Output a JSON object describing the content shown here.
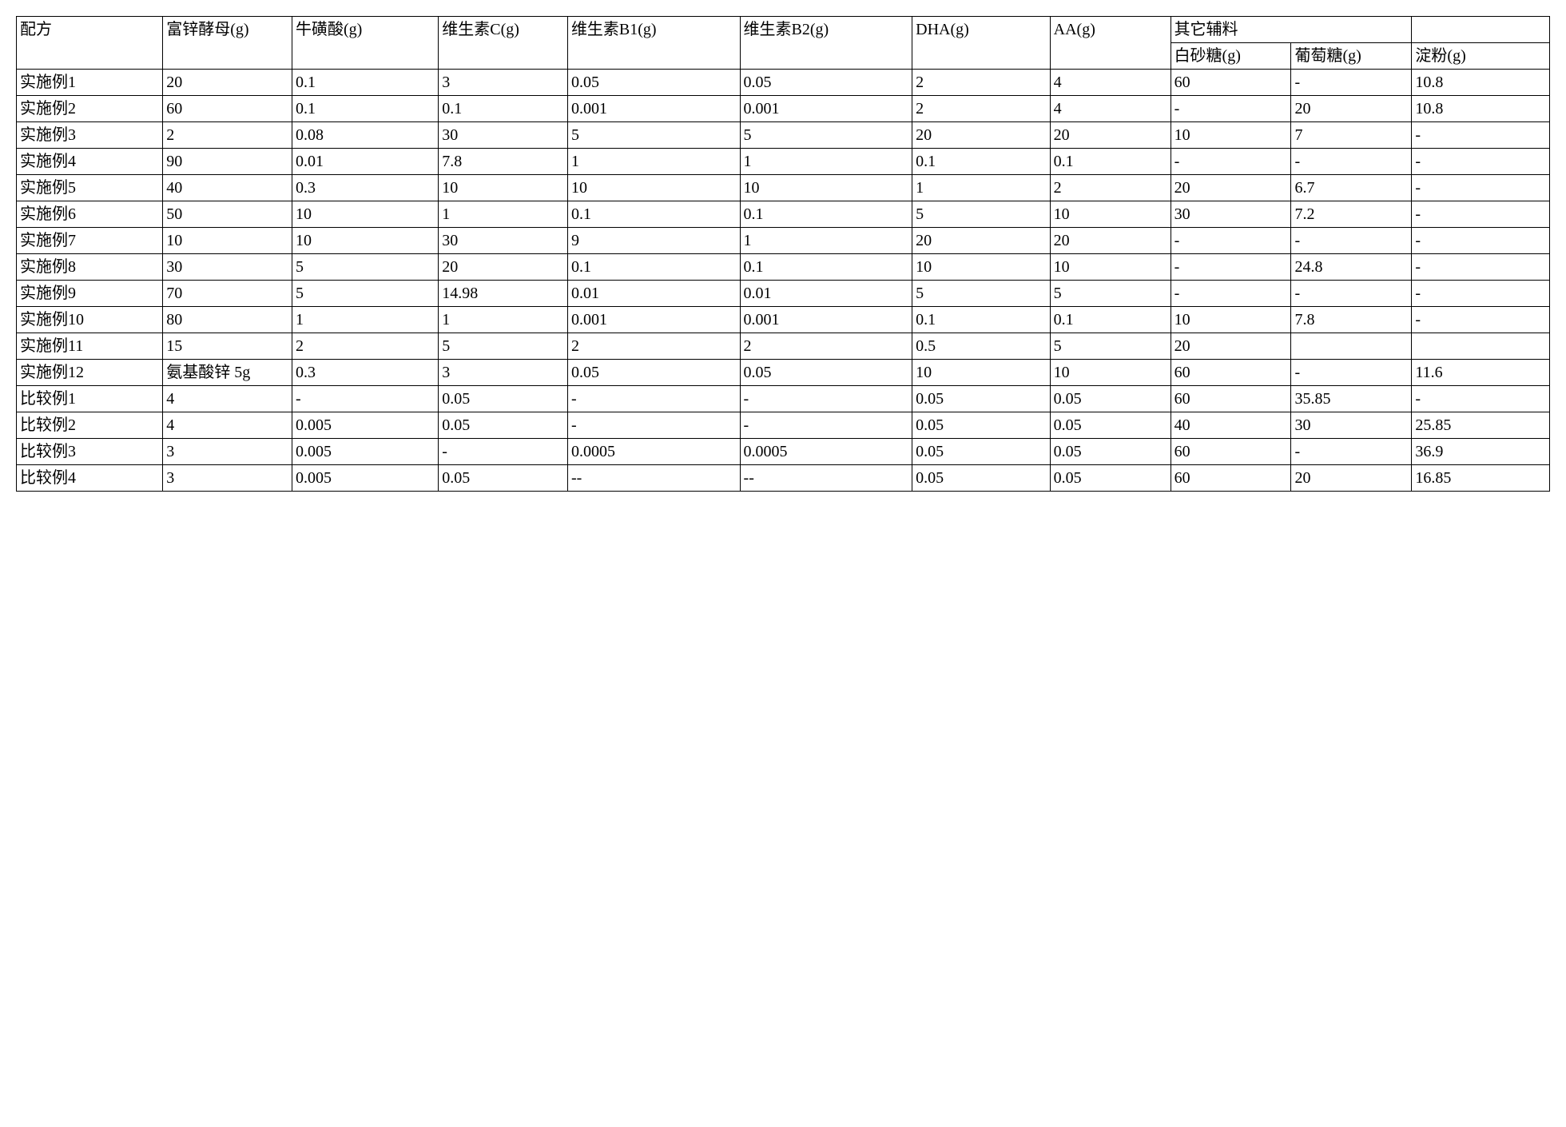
{
  "headers": {
    "c0": "配方",
    "c1": "富锌酵母(g)",
    "c2": "牛磺酸(g)",
    "c3": "维生素C(g)",
    "c4": "维生素B1(g)",
    "c5": "维生素B2(g)",
    "c6": "DHA(g)",
    "c7": "AA(g)",
    "grp": "其它辅料",
    "c8": "白砂糖(g)",
    "c9": "葡萄糖(g)",
    "c10": "淀粉(g)"
  },
  "rows": [
    {
      "r": "实施例1",
      "d": [
        "20",
        "0.1",
        "3",
        "0.05",
        "0.05",
        "2",
        "4",
        "60",
        "-",
        "10.8"
      ]
    },
    {
      "r": "实施例2",
      "d": [
        "60",
        "0.1",
        "0.1",
        "0.001",
        "0.001",
        "2",
        "4",
        "-",
        "20",
        "10.8"
      ]
    },
    {
      "r": "实施例3",
      "d": [
        "2",
        "0.08",
        "30",
        "5",
        "5",
        "20",
        "20",
        "10",
        "7",
        "-"
      ]
    },
    {
      "r": "实施例4",
      "d": [
        "90",
        "0.01",
        "7.8",
        "1",
        "1",
        "0.1",
        "0.1",
        "-",
        "-",
        "-"
      ]
    },
    {
      "r": "实施例5",
      "d": [
        "40",
        "0.3",
        "10",
        "10",
        "10",
        "1",
        "2",
        "20",
        "6.7",
        "-"
      ]
    },
    {
      "r": "实施例6",
      "d": [
        "50",
        "10",
        "1",
        "0.1",
        "0.1",
        "5",
        "10",
        "30",
        "7.2",
        "-"
      ]
    },
    {
      "r": "实施例7",
      "d": [
        "10",
        "10",
        "30",
        "9",
        "1",
        "20",
        "20",
        "-",
        "-",
        "-"
      ]
    },
    {
      "r": "实施例8",
      "d": [
        "30",
        "5",
        "20",
        "0.1",
        "0.1",
        "10",
        "10",
        "-",
        "24.8",
        "-"
      ]
    },
    {
      "r": "实施例9",
      "d": [
        "70",
        "5",
        "14.98",
        "0.01",
        "0.01",
        "5",
        "5",
        "-",
        "-",
        "-"
      ]
    },
    {
      "r": "实施例10",
      "d": [
        "80",
        "1",
        "1",
        "0.001",
        "0.001",
        "0.1",
        "0.1",
        "10",
        "7.8",
        "-"
      ]
    },
    {
      "r": "实施例11",
      "d": [
        "15",
        "2",
        "5",
        "2",
        "2",
        "0.5",
        "5",
        "20",
        "",
        ""
      ]
    },
    {
      "r": "实施例12",
      "d": [
        "氨基酸锌 5g",
        "0.3",
        "3",
        "0.05",
        "0.05",
        "10",
        "10",
        "60",
        "-",
        "11.6"
      ]
    },
    {
      "r": "比较例1",
      "d": [
        "4",
        "-",
        "0.05",
        "-",
        "-",
        "0.05",
        "0.05",
        "60",
        "35.85",
        "-"
      ]
    },
    {
      "r": "比较例2",
      "d": [
        "4",
        "0.005",
        "0.05",
        "-",
        "-",
        "0.05",
        "0.05",
        "40",
        "30",
        "25.85"
      ]
    },
    {
      "r": "比较例3",
      "d": [
        "3",
        "0.005",
        "-",
        "0.0005",
        "0.0005",
        "0.05",
        "0.05",
        "60",
        "-",
        "36.9"
      ]
    },
    {
      "r": "比较例4",
      "d": [
        "3",
        "0.005",
        "0.05",
        "--",
        "--",
        "0.05",
        "0.05",
        "60",
        "20",
        "16.85"
      ]
    }
  ]
}
